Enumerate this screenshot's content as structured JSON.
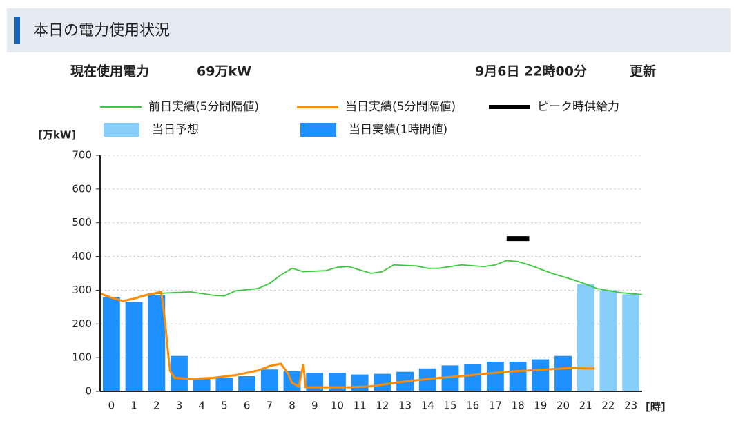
{
  "header": {
    "title": "本日の電力使用状況"
  },
  "status": {
    "label": "現在使用電力",
    "value": "69万kW",
    "datetime": "9月6日 22時00分",
    "update": "更新"
  },
  "chart_data": {
    "type": "bar",
    "y_label": "[万kW]",
    "x_label": "[時]",
    "categories": [
      "0",
      "1",
      "2",
      "3",
      "4",
      "5",
      "6",
      "7",
      "8",
      "9",
      "10",
      "11",
      "12",
      "13",
      "14",
      "15",
      "16",
      "17",
      "18",
      "19",
      "20",
      "21",
      "22",
      "23"
    ],
    "xlim": [
      0,
      24
    ],
    "ylim": [
      0,
      700
    ],
    "yticks": [
      0,
      100,
      200,
      300,
      400,
      500,
      600,
      700
    ],
    "grid": true,
    "series": [
      {
        "name": "前日実績(5分間隔値)",
        "kind": "line",
        "color": "#3cc83c",
        "x": [
          0,
          0.5,
          1,
          1.5,
          2,
          2.5,
          3,
          4,
          5,
          5.5,
          6,
          7,
          7.5,
          8,
          8.5,
          9,
          10,
          10.5,
          11,
          12,
          12.5,
          13,
          14,
          14.5,
          15,
          16,
          17,
          17.5,
          18,
          18.5,
          19,
          20,
          21,
          21.5,
          22,
          23,
          23.5,
          24
        ],
        "values": [
          290,
          278,
          268,
          275,
          285,
          290,
          292,
          295,
          285,
          283,
          298,
          305,
          320,
          345,
          365,
          355,
          358,
          368,
          370,
          350,
          355,
          375,
          372,
          365,
          365,
          375,
          370,
          375,
          388,
          385,
          375,
          350,
          330,
          318,
          305,
          293,
          290,
          287
        ]
      },
      {
        "name": "当日実績(5分間隔値)",
        "kind": "line",
        "color": "#ff8c00",
        "x": [
          0,
          0.5,
          1,
          1.5,
          2,
          2.5,
          2.7,
          2.8,
          2.9,
          3,
          3.1,
          3.3,
          4,
          5,
          6,
          7,
          7.5,
          8,
          8.3,
          8.5,
          8.8,
          9,
          9.1,
          10,
          11,
          12,
          13,
          14,
          15,
          16,
          17,
          18,
          19,
          20,
          20.5,
          21,
          21.5,
          21.9
        ],
        "values": [
          290,
          278,
          268,
          275,
          285,
          292,
          295,
          250,
          190,
          120,
          60,
          40,
          37,
          40,
          48,
          62,
          75,
          82,
          55,
          25,
          15,
          80,
          12,
          12,
          12,
          15,
          25,
          33,
          40,
          45,
          52,
          58,
          62,
          66,
          68,
          70,
          68,
          68
        ]
      },
      {
        "name": "ピーク時供給力",
        "kind": "peak",
        "color": "#000000",
        "values": [
          null,
          null,
          null,
          null,
          null,
          null,
          null,
          null,
          null,
          null,
          null,
          null,
          null,
          null,
          null,
          null,
          null,
          null,
          453,
          null,
          null,
          null,
          null,
          null
        ]
      },
      {
        "name": "当日予想",
        "kind": "bar",
        "color": "#87cefa",
        "values": [
          null,
          null,
          null,
          null,
          null,
          null,
          null,
          null,
          null,
          null,
          null,
          null,
          null,
          null,
          null,
          null,
          null,
          null,
          null,
          null,
          null,
          318,
          300,
          288
        ]
      },
      {
        "name": "当日実績(1時間値)",
        "kind": "bar",
        "color": "#1e90ff",
        "values": [
          280,
          265,
          285,
          105,
          40,
          40,
          45,
          65,
          60,
          55,
          55,
          50,
          52,
          58,
          68,
          77,
          80,
          88,
          88,
          95,
          105,
          null,
          null,
          null
        ]
      }
    ]
  }
}
